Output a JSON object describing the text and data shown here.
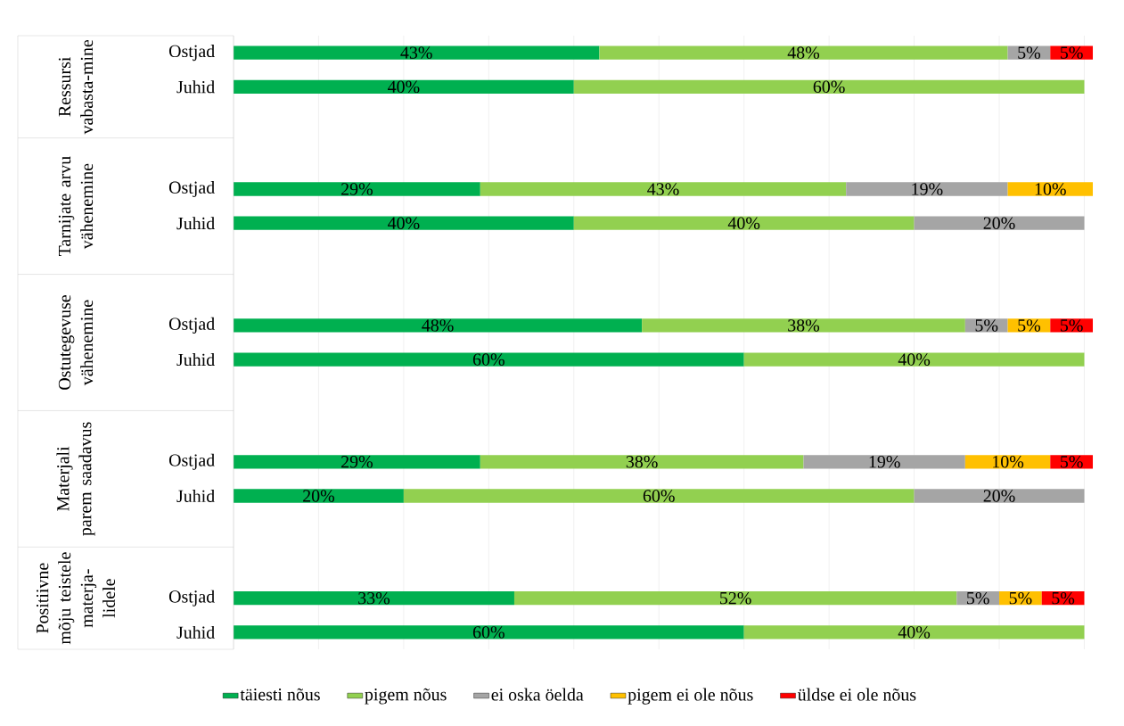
{
  "chart_data": {
    "type": "bar",
    "orientation": "horizontal",
    "stacked": true,
    "categories": [
      "Ostjad",
      "Juhid",
      null,
      null,
      "Ostjad",
      "Juhid",
      null,
      null,
      "Ostjad",
      "Juhid",
      null,
      null,
      "Ostjad",
      "Juhid",
      null,
      null,
      "Ostjad",
      "Juhid"
    ],
    "annotations": [
      "Ressursi vabasta-mine",
      "Tarnijate arvu vähenemine",
      "Ostutegevuse vähenemine",
      "Materjali parem saadavus",
      "Positiivne mõju teistele materja-lidele"
    ],
    "series": [
      {
        "name": "täiesti nõus",
        "color": "#00b050",
        "values": [
          43,
          40,
          null,
          null,
          29,
          40,
          null,
          null,
          48,
          60,
          null,
          null,
          29,
          20,
          null,
          null,
          33,
          60
        ],
        "value_labels": [
          "43%",
          "40%",
          null,
          null,
          "29%",
          "40%",
          null,
          null,
          "48%",
          "60%",
          null,
          null,
          "29%",
          "20%",
          null,
          null,
          "33%",
          "60%"
        ]
      },
      {
        "name": "pigem nõus",
        "color": "#92d050",
        "values": [
          48,
          60,
          null,
          null,
          43,
          40,
          null,
          null,
          38,
          40,
          null,
          null,
          38,
          60,
          null,
          null,
          52,
          40
        ],
        "value_labels": [
          "48%",
          "60%",
          null,
          null,
          "43%",
          "40%",
          null,
          null,
          "38%",
          "40%",
          null,
          null,
          "38%",
          "60%",
          null,
          null,
          "52%",
          "40%"
        ]
      },
      {
        "name": "ei oska öelda",
        "color": "#a5a5a5",
        "values": [
          5,
          null,
          null,
          null,
          19,
          20,
          null,
          null,
          5,
          null,
          null,
          null,
          19,
          20,
          null,
          null,
          5,
          null
        ],
        "value_labels": [
          "5%",
          null,
          null,
          null,
          "19%",
          "20%",
          null,
          null,
          "5%",
          null,
          null,
          null,
          "19%",
          "20%",
          null,
          null,
          "5%",
          null
        ]
      },
      {
        "name": "pigem ei ole nõus",
        "color": "#ffc000",
        "values": [
          null,
          null,
          null,
          null,
          10,
          null,
          null,
          null,
          5,
          null,
          null,
          null,
          10,
          null,
          null,
          null,
          5,
          null
        ],
        "value_labels": [
          null,
          null,
          null,
          null,
          "10%",
          null,
          null,
          null,
          "5%",
          null,
          null,
          null,
          "10%",
          null,
          null,
          null,
          "5%",
          null
        ]
      },
      {
        "name": "üldse ei ole nõus",
        "color": "#ff0000",
        "values": [
          5,
          null,
          null,
          null,
          null,
          null,
          null,
          null,
          5,
          null,
          null,
          null,
          5,
          null,
          null,
          null,
          5,
          null
        ],
        "value_labels": [
          "5%",
          null,
          null,
          null,
          null,
          null,
          null,
          null,
          "5%",
          null,
          null,
          null,
          "5%",
          null,
          null,
          null,
          "5%",
          null
        ]
      }
    ],
    "xlim": [
      0,
      101
    ],
    "xticks": [
      {
        "value": 0,
        "label": null
      },
      {
        "value": 10,
        "label": null
      },
      {
        "value": 20,
        "label": null
      },
      {
        "value": 30,
        "label": null
      },
      {
        "value": 40,
        "label": null
      },
      {
        "value": 50,
        "label": null
      },
      {
        "value": 60,
        "label": null
      },
      {
        "value": 70,
        "label": null
      },
      {
        "value": 80,
        "label": null
      },
      {
        "value": 90,
        "label": null
      },
      {
        "value": 100,
        "label": null
      }
    ],
    "grid": "x",
    "legend": "bottom",
    "tick_labels": "y"
  }
}
